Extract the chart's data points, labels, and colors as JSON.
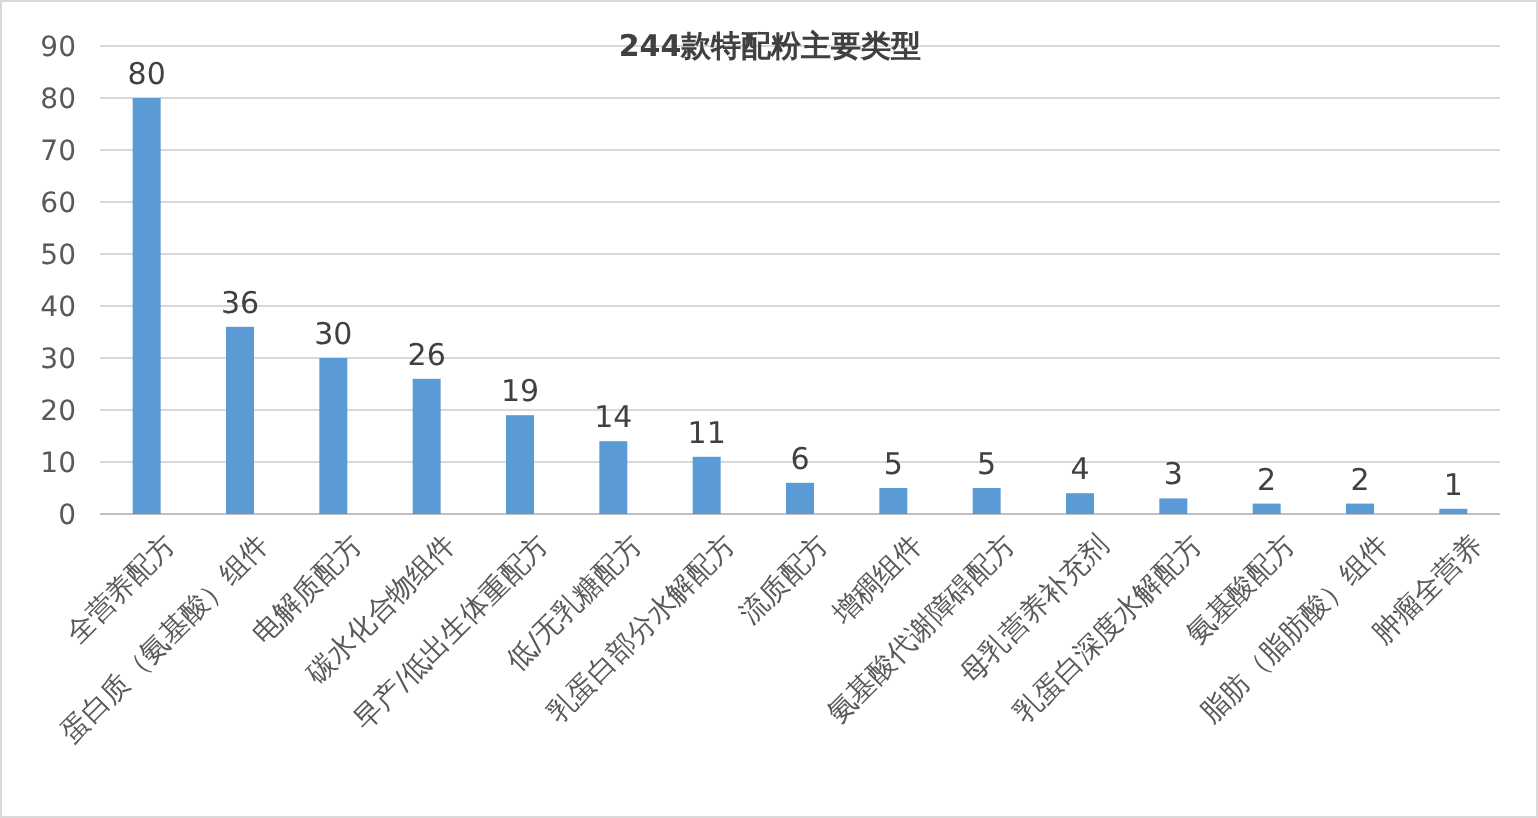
{
  "chart_data": {
    "type": "bar",
    "title": "244款特配粉主要类型",
    "categories": [
      "全营养配方",
      "蛋白质（氨基酸）组件",
      "电解质配方",
      "碳水化合物组件",
      "早产/低出生体重配方",
      "低/无乳糖配方",
      "乳蛋白部分水解配方",
      "流质配方",
      "增稠组件",
      "氨基酸代谢障碍配方",
      "母乳营养补充剂",
      "乳蛋白深度水解配方",
      "氨基酸配方",
      "脂肪（脂肪酸）组件",
      "肿瘤全营养"
    ],
    "values": [
      80,
      36,
      30,
      26,
      19,
      14,
      11,
      6,
      5,
      5,
      4,
      3,
      2,
      2,
      1
    ],
    "color": "#5b9bd5",
    "ylim": [
      0,
      90
    ],
    "yticks": [
      0,
      10,
      20,
      30,
      40,
      50,
      60,
      70,
      80,
      90
    ],
    "grid": "y",
    "data_labels": true
  }
}
